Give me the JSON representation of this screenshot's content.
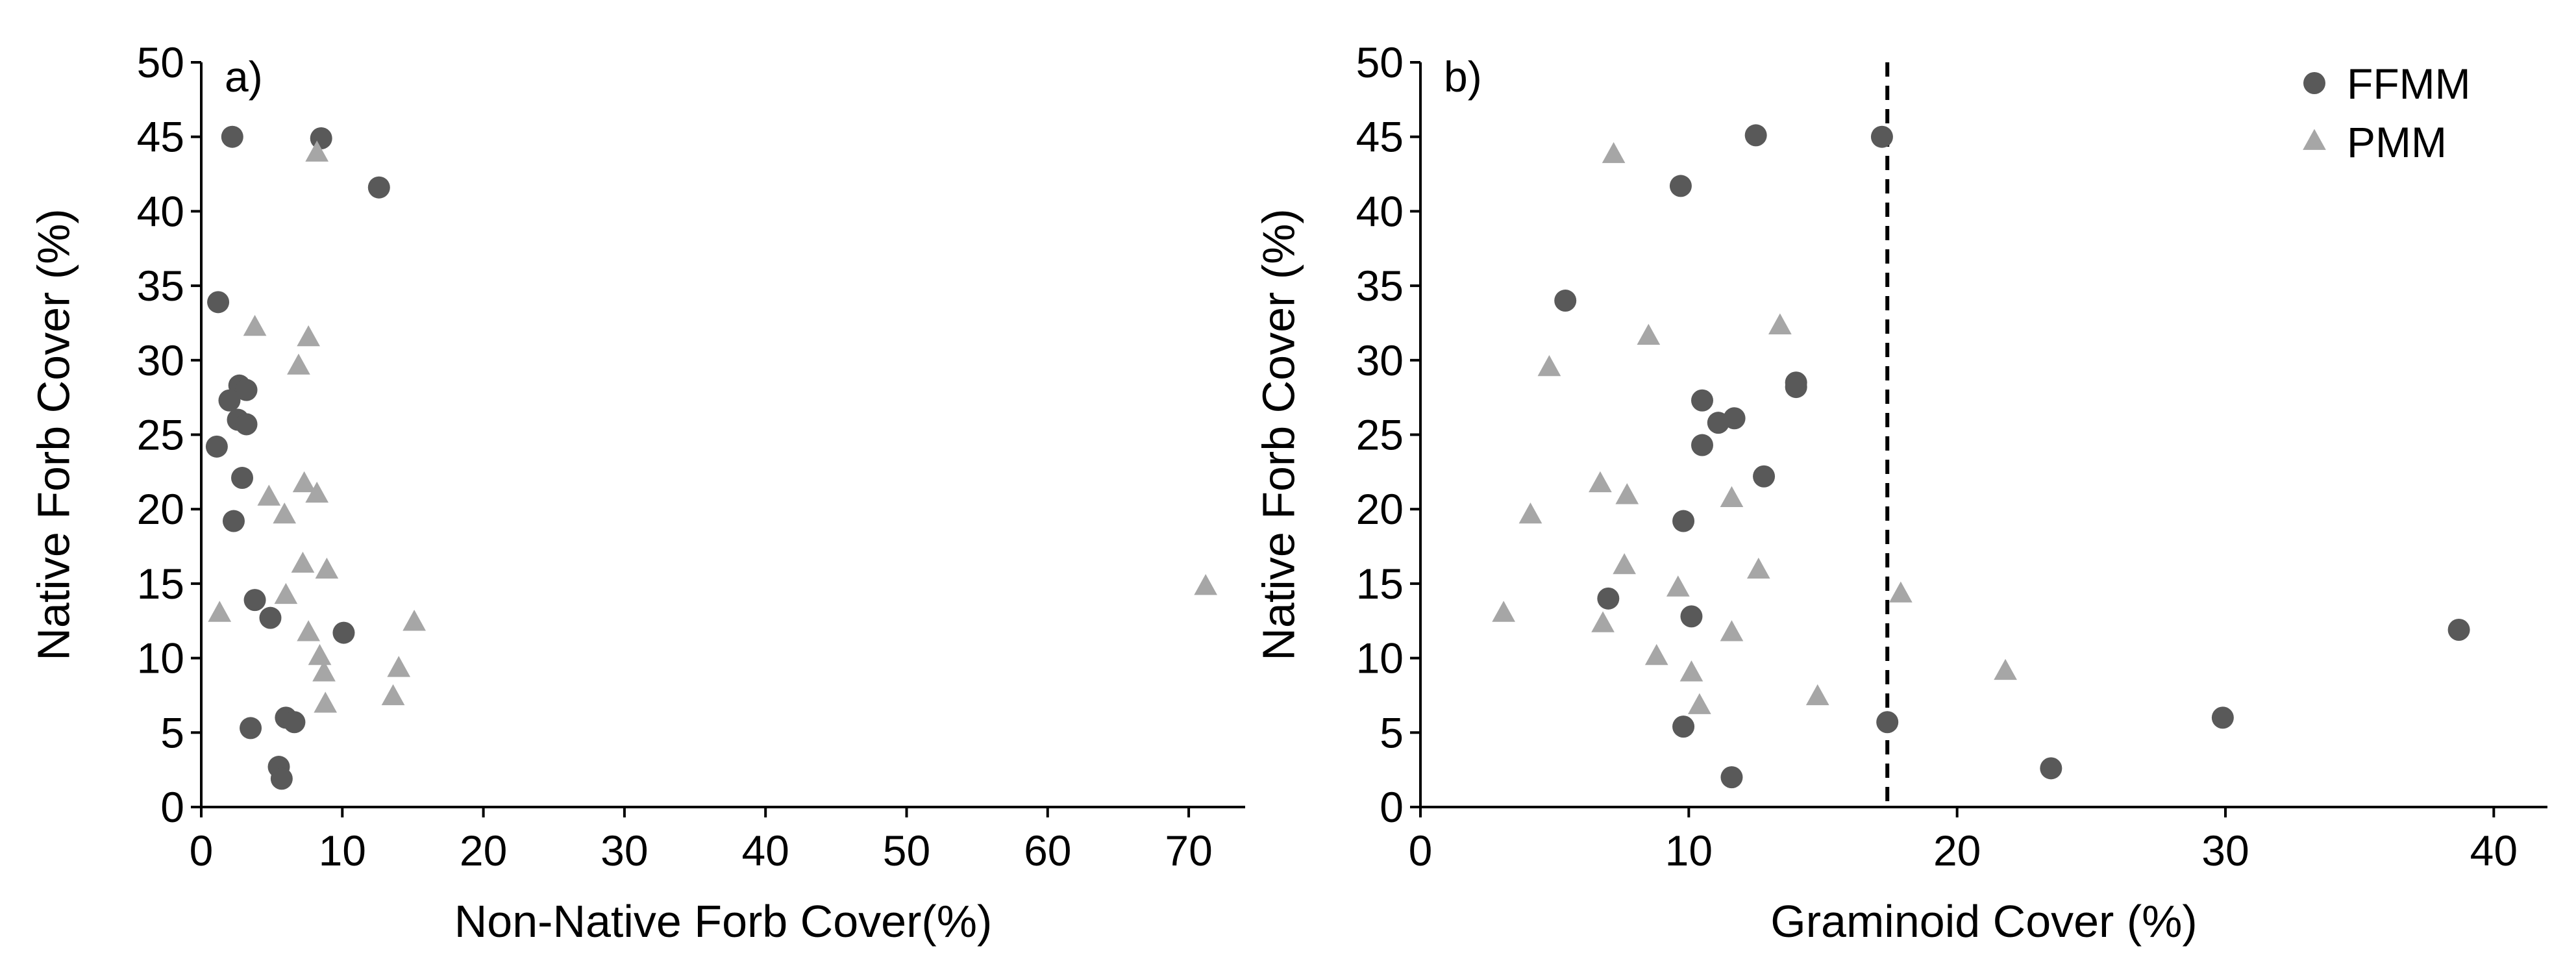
{
  "colors": {
    "FFMM": "#595959",
    "PMM": "#a6a6a6",
    "axis": "#000000",
    "threshold": "#000000"
  },
  "legend": {
    "placement": "top-right",
    "items": [
      {
        "series": "FFMM",
        "label": "FFMM",
        "marker": "circle"
      },
      {
        "series": "PMM",
        "label": "PMM",
        "marker": "triangle"
      }
    ]
  },
  "chart_data": [
    {
      "type": "scatter",
      "panel_label": "a)",
      "xlabel": "Non-Native Forb Cover(%)",
      "ylabel": "Native Forb Cover (%)",
      "xlim": [
        0,
        74
      ],
      "ylim": [
        0,
        50
      ],
      "xticks": [
        0,
        10,
        20,
        30,
        40,
        50,
        60,
        70
      ],
      "yticks": [
        0,
        5,
        10,
        15,
        20,
        25,
        30,
        35,
        40,
        45,
        50
      ],
      "grid": false,
      "series": [
        {
          "name": "FFMM",
          "points": [
            [
              2.2,
              45
            ],
            [
              8.5,
              44.9
            ],
            [
              12.6,
              41.6
            ],
            [
              1.2,
              33.9
            ],
            [
              2.7,
              28.3
            ],
            [
              3.2,
              28
            ],
            [
              2,
              27.3
            ],
            [
              2.6,
              26
            ],
            [
              3.2,
              25.7
            ],
            [
              1.1,
              24.2
            ],
            [
              2.9,
              22.1
            ],
            [
              2.3,
              19.2
            ],
            [
              3.8,
              13.9
            ],
            [
              4.9,
              12.7
            ],
            [
              10.1,
              11.7
            ],
            [
              6,
              6
            ],
            [
              6.6,
              5.7
            ],
            [
              3.5,
              5.3
            ],
            [
              5.5,
              2.7
            ],
            [
              5.7,
              1.9
            ]
          ]
        },
        {
          "name": "PMM",
          "points": [
            [
              8.2,
              43.9
            ],
            [
              3.8,
              32.2
            ],
            [
              7.6,
              31.5
            ],
            [
              6.9,
              29.6
            ],
            [
              7.3,
              21.7
            ],
            [
              8.2,
              21
            ],
            [
              4.8,
              20.8
            ],
            [
              5.9,
              19.6
            ],
            [
              7.2,
              16.3
            ],
            [
              8.9,
              15.9
            ],
            [
              6,
              14.2
            ],
            [
              71.2,
              14.8
            ],
            [
              1.3,
              13
            ],
            [
              15.1,
              12.4
            ],
            [
              7.6,
              11.7
            ],
            [
              8.4,
              10.1
            ],
            [
              8.7,
              9
            ],
            [
              14,
              9.3
            ],
            [
              8.8,
              6.9
            ],
            [
              13.6,
              7.4
            ]
          ]
        }
      ]
    },
    {
      "type": "scatter",
      "panel_label": "b)",
      "xlabel": "Graminoid Cover (%)",
      "ylabel": "Native Forb Cover (%)",
      "xlim": [
        0,
        42
      ],
      "ylim": [
        0,
        50
      ],
      "xticks": [
        0,
        10,
        20,
        30,
        40
      ],
      "yticks": [
        0,
        5,
        10,
        15,
        20,
        25,
        30,
        35,
        40,
        45,
        50
      ],
      "grid": false,
      "threshold_x": 17.4,
      "series": [
        {
          "name": "FFMM",
          "points": [
            [
              12.5,
              45.1
            ],
            [
              17.2,
              45
            ],
            [
              9.7,
              41.7
            ],
            [
              5.4,
              34
            ],
            [
              14,
              28.5
            ],
            [
              14,
              28.2
            ],
            [
              10.5,
              27.3
            ],
            [
              11.7,
              26.1
            ],
            [
              11.1,
              25.8
            ],
            [
              10.5,
              24.3
            ],
            [
              12.8,
              22.2
            ],
            [
              9.8,
              19.2
            ],
            [
              7,
              14
            ],
            [
              10.1,
              12.8
            ],
            [
              38.7,
              11.9
            ],
            [
              29.9,
              6
            ],
            [
              17.4,
              5.7
            ],
            [
              9.8,
              5.4
            ],
            [
              23.5,
              2.6
            ],
            [
              11.6,
              2
            ]
          ]
        },
        {
          "name": "PMM",
          "points": [
            [
              7.2,
              43.8
            ],
            [
              13.4,
              32.3
            ],
            [
              8.5,
              31.6
            ],
            [
              4.8,
              29.5
            ],
            [
              6.7,
              21.7
            ],
            [
              7.7,
              20.9
            ],
            [
              11.6,
              20.7
            ],
            [
              4.1,
              19.6
            ],
            [
              7.6,
              16.2
            ],
            [
              12.6,
              15.9
            ],
            [
              9.6,
              14.7
            ],
            [
              17.9,
              14.3
            ],
            [
              3.1,
              13
            ],
            [
              6.8,
              12.3
            ],
            [
              11.6,
              11.7
            ],
            [
              8.8,
              10.1
            ],
            [
              10.1,
              9
            ],
            [
              21.8,
              9.1
            ],
            [
              10.4,
              6.8
            ],
            [
              14.8,
              7.4
            ]
          ]
        }
      ]
    }
  ]
}
